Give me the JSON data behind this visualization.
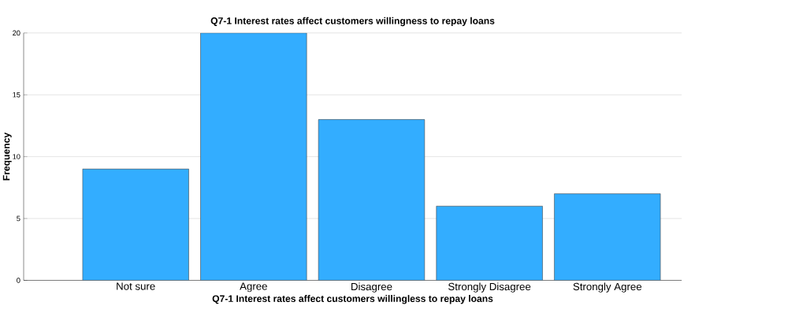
{
  "chart_data": {
    "type": "bar",
    "title": "Q7-1 Interest rates affect customers willingness to repay loans",
    "xlabel": "Q7-1 Interest rates affect customers willingless to repay loans",
    "ylabel": "Frequency",
    "categories": [
      "Not sure",
      "Agree",
      "Disagree",
      "Strongly Disagree",
      "Strongly Agree"
    ],
    "values": [
      9,
      20,
      13,
      6,
      7
    ],
    "color": "#33adff",
    "ylim": [
      0,
      20
    ],
    "yticks": [
      0,
      5,
      10,
      15,
      20
    ],
    "grid": "y"
  }
}
